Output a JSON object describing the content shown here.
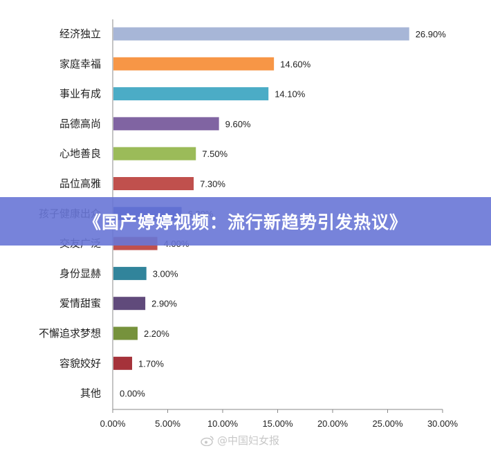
{
  "chart_data": {
    "type": "bar",
    "orientation": "horizontal",
    "categories": [
      "经济独立",
      "家庭幸福",
      "事业有成",
      "品德高尚",
      "心地善良",
      "品位高雅",
      "孩子健康出众",
      "交友广泛",
      "身份显赫",
      "爱情甜蜜",
      "不懈追求梦想",
      "容貌姣好",
      "其他"
    ],
    "values": [
      26.9,
      14.6,
      14.1,
      9.6,
      7.5,
      7.3,
      6.2,
      4.0,
      3.0,
      2.9,
      2.2,
      1.7,
      0.0
    ],
    "value_labels": [
      "26.90%",
      "14.60%",
      "14.10%",
      "9.60%",
      "7.50%",
      "7.30%",
      "6.20%",
      "4.00%",
      "3.00%",
      "2.90%",
      "2.20%",
      "1.70%",
      "0.00%"
    ],
    "colors": [
      "#a7b6d7",
      "#f79646",
      "#4bacc6",
      "#8064a2",
      "#9bbb59",
      "#c0504d",
      "#2e49bb",
      "#c0504d",
      "#31849b",
      "#604a7b",
      "#76923c",
      "#a5323a",
      "#a7b6d7"
    ],
    "x_ticks": [
      "0.00%",
      "5.00%",
      "10.00%",
      "15.00%",
      "20.00%",
      "25.00%",
      "30.00%"
    ],
    "xlim": [
      0,
      30
    ],
    "grid": false,
    "title": "",
    "xlabel": "",
    "ylabel": ""
  },
  "banner": {
    "title": "《国产婷婷视频：流行新趋势引发热议》"
  },
  "watermark": {
    "text": "@中国妇女报"
  }
}
